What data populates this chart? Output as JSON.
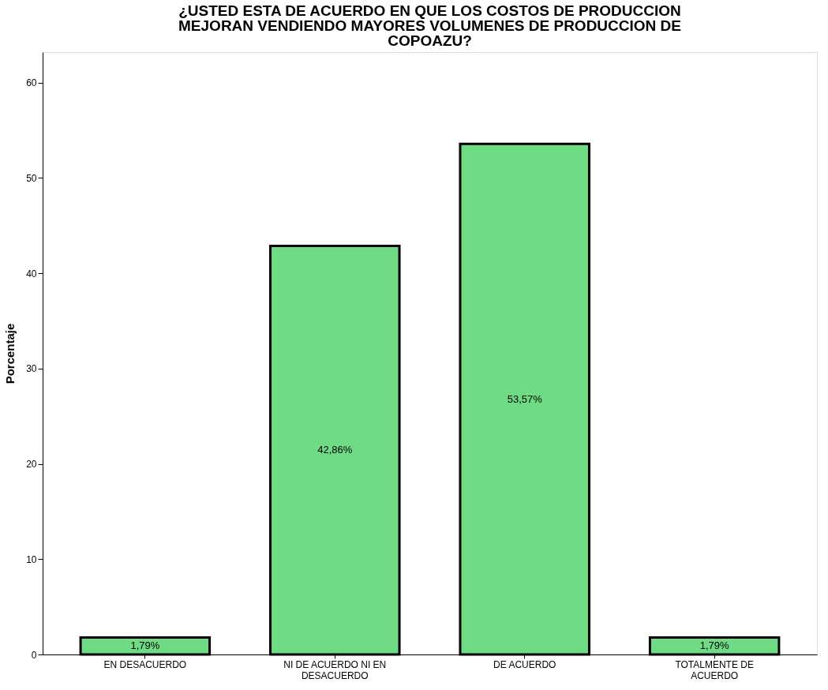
{
  "chart_data": {
    "type": "bar",
    "title": "¿USTED ESTA DE ACUERDO EN QUE LOS COSTOS DE PRODUCCION MEJORAN VENDIENDO MAYORES VOLUMENES DE PRODUCCION DE COPOAZU?",
    "ylabel": "Porcentaje",
    "categories": [
      "EN DESACUERDO",
      "NI DE ACUERDO NI EN DESACUERDO",
      "DE ACUERDO",
      "TOTALMENTE DE ACUERDO"
    ],
    "values": [
      1.79,
      42.86,
      53.57,
      1.79
    ],
    "value_labels": [
      "1,79%",
      "42,86%",
      "53,57%",
      "1,79%"
    ],
    "color": "#6fdb84",
    "ylim": [
      0,
      63.2
    ],
    "yticks": [
      0,
      10,
      20,
      30,
      40,
      50,
      60
    ],
    "grid": false
  }
}
